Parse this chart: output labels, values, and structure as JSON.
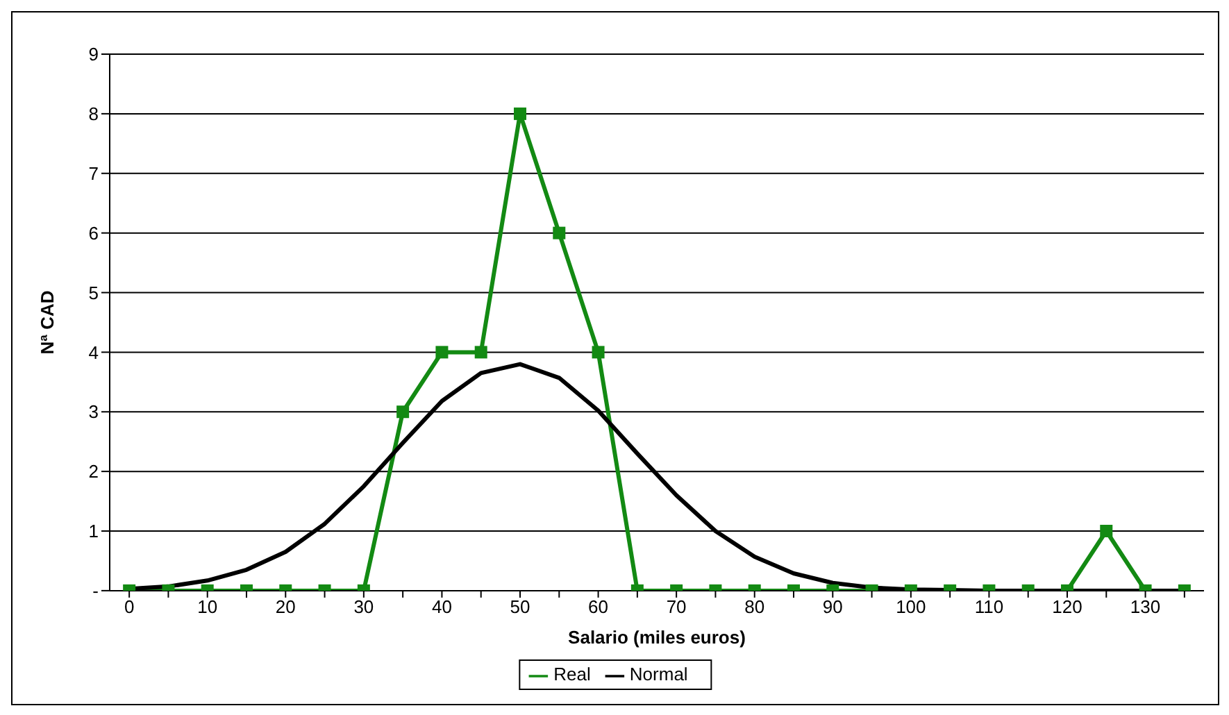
{
  "chart_data": {
    "type": "line",
    "xlabel": "Salario (miles euros)",
    "ylabel": "Nª CAD",
    "x": [
      0,
      5,
      10,
      15,
      20,
      25,
      30,
      35,
      40,
      45,
      50,
      55,
      60,
      65,
      70,
      75,
      80,
      85,
      90,
      95,
      100,
      105,
      110,
      115,
      120,
      125,
      130,
      135
    ],
    "series": [
      {
        "name": "Real",
        "color": "#138a13",
        "marker": "square",
        "values": [
          0,
          0,
          0,
          0,
          0,
          0,
          0,
          3,
          4,
          4,
          8,
          6,
          4,
          0,
          0,
          0,
          0,
          0,
          0,
          0,
          0,
          0,
          0,
          0,
          0,
          1,
          0,
          0
        ]
      },
      {
        "name": "Normal",
        "color": "#000000",
        "marker": "none",
        "values": [
          0.03,
          0.07,
          0.17,
          0.35,
          0.65,
          1.12,
          1.75,
          2.48,
          3.18,
          3.65,
          3.8,
          3.57,
          3.02,
          2.3,
          1.6,
          1.0,
          0.57,
          0.29,
          0.13,
          0.05,
          0.02,
          0.01,
          0,
          0,
          0,
          0,
          0,
          0
        ]
      }
    ],
    "xlim": [
      -2.5,
      137.5
    ],
    "xticks": [
      0,
      {
        "value": 5,
        "label": null
      },
      10,
      {
        "value": 15,
        "label": null
      },
      20,
      {
        "value": 25,
        "label": null
      },
      30,
      {
        "value": 35,
        "label": null
      },
      40,
      {
        "value": 45,
        "label": null
      },
      50,
      {
        "value": 55,
        "label": null
      },
      60,
      {
        "value": 65,
        "label": null
      },
      70,
      {
        "value": 75,
        "label": null
      },
      80,
      {
        "value": 85,
        "label": null
      },
      90,
      {
        "value": 95,
        "label": null
      },
      100,
      {
        "value": 105,
        "label": null
      },
      110,
      {
        "value": 115,
        "label": null
      },
      120,
      {
        "value": 125,
        "label": null
      },
      130,
      {
        "value": 135,
        "label": null
      }
    ],
    "ylim": [
      0,
      9
    ],
    "yticks": [
      {
        "value": 0,
        "label": "-"
      },
      1,
      2,
      3,
      4,
      5,
      6,
      7,
      8,
      9
    ],
    "grid": "y",
    "legend": "bottom"
  }
}
